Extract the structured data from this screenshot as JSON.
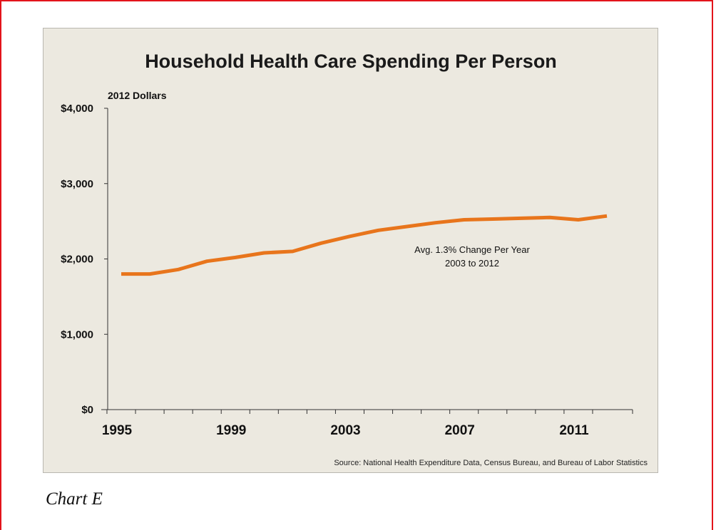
{
  "caption": "Chart E",
  "colors": {
    "frame": "#e3141b",
    "panel": "#ece9e0",
    "line": "#e8751c",
    "axis": "#333333"
  },
  "chart_data": {
    "type": "line",
    "title": "Household Health Care Spending Per Person",
    "unit_label": "2012 Dollars",
    "x": [
      1995,
      1996,
      1997,
      1998,
      1999,
      2000,
      2001,
      2002,
      2003,
      2004,
      2005,
      2006,
      2007,
      2008,
      2009,
      2010,
      2011,
      2012
    ],
    "series": [
      {
        "values": [
          1800,
          1800,
          1860,
          1970,
          2020,
          2080,
          2100,
          2210,
          2300,
          2380,
          2430,
          2480,
          2520,
          2530,
          2540,
          2550,
          2520,
          2570
        ]
      }
    ],
    "xlim": [
      1995,
      2012
    ],
    "ylim": [
      0,
      4000
    ],
    "x_ticks": [
      1995,
      1999,
      2003,
      2007,
      2011
    ],
    "x_tick_labels": [
      "1995",
      "1999",
      "2003",
      "2007",
      "2011"
    ],
    "y_ticks": [
      0,
      1000,
      2000,
      3000,
      4000
    ],
    "y_tick_labels": [
      "$0",
      "$1,000",
      "$2,000",
      "$3,000",
      "$4,000"
    ],
    "annotation": [
      "Avg. 1.3% Change Per Year",
      "2003 to 2012"
    ],
    "source": "Source: National Health Expenditure Data, Census Bureau, and Bureau of Labor Statistics",
    "grid": false
  }
}
